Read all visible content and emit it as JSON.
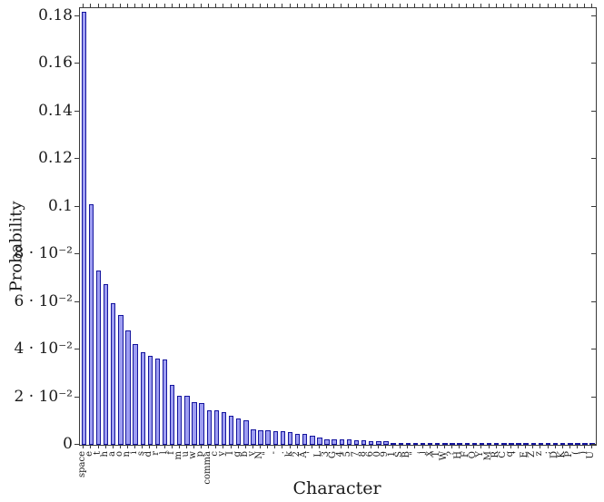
{
  "figure": {
    "xlabel": "Character",
    "ylabel": "Probability"
  },
  "chart_data": {
    "type": "bar",
    "title": "",
    "xlabel": "Character",
    "ylabel": "Probability",
    "ylim": [
      0,
      0.1834
    ],
    "ytick_interval": 0.02,
    "ytick_values": [
      0,
      0.02,
      0.04,
      0.06,
      0.08,
      0.1,
      0.12,
      0.14,
      0.16,
      0.18
    ],
    "ytick_labels": [
      "0",
      "2 · 10⁻²",
      "4 · 10⁻²",
      "6 · 10⁻²",
      "8 · 10⁻²",
      "0.1",
      "0.12",
      "0.14",
      "0.16",
      "0.18"
    ],
    "grid": false,
    "legend": null,
    "bar_fill": "#9e9ef2",
    "bar_edge": "#15159e",
    "axis_color": "#3a3a3a",
    "categories": [
      "space",
      "e",
      "t",
      "h",
      "a",
      "o",
      "n",
      "i",
      "s",
      "d",
      "r",
      "l",
      "f",
      "m",
      "u",
      "w",
      "p",
      "comma",
      "c",
      "y",
      "I",
      "g",
      "b",
      "v",
      "N",
      "\"",
      "-",
      ".",
      "k",
      "2",
      "A",
      "'",
      "L",
      "3",
      "G",
      "4",
      "5",
      "7",
      "8",
      "6",
      "0",
      "9",
      "1",
      "S",
      "B",
      "\"",
      "j",
      "x",
      "T",
      "W",
      "?",
      "H",
      "F",
      "O",
      "Y",
      "M",
      "R",
      "C",
      "q",
      "'",
      "E",
      "Z",
      "z",
      ";",
      "D",
      "K",
      "P",
      "(",
      ")",
      "U"
    ],
    "values": [
      0.182,
      0.101,
      0.0733,
      0.0676,
      0.0594,
      0.0545,
      0.0479,
      0.0424,
      0.039,
      0.0373,
      0.0362,
      0.0359,
      0.0251,
      0.0206,
      0.0204,
      0.0179,
      0.0175,
      0.0146,
      0.0144,
      0.0136,
      0.0123,
      0.0111,
      0.0104,
      0.0065,
      0.0061,
      0.006,
      0.0058,
      0.0057,
      0.0055,
      0.0047,
      0.0044,
      0.0037,
      0.0032,
      0.0024,
      0.0022,
      0.0021,
      0.0021,
      0.0019,
      0.0019,
      0.0017,
      0.0017,
      0.0016,
      0.0009,
      0.0008,
      0.0007,
      0.0007,
      0.0006,
      0.0006,
      0.0005,
      0.0005,
      0.0004,
      0.0004,
      0.0004,
      0.0004,
      0.0003,
      0.0003,
      0.0003,
      0.0003,
      0.0002,
      0.0002,
      0.0002,
      0.0002,
      0.0002,
      0.0001,
      0.0001,
      0.0001,
      0.0001,
      0.0001,
      0.0001,
      0.0001
    ]
  }
}
